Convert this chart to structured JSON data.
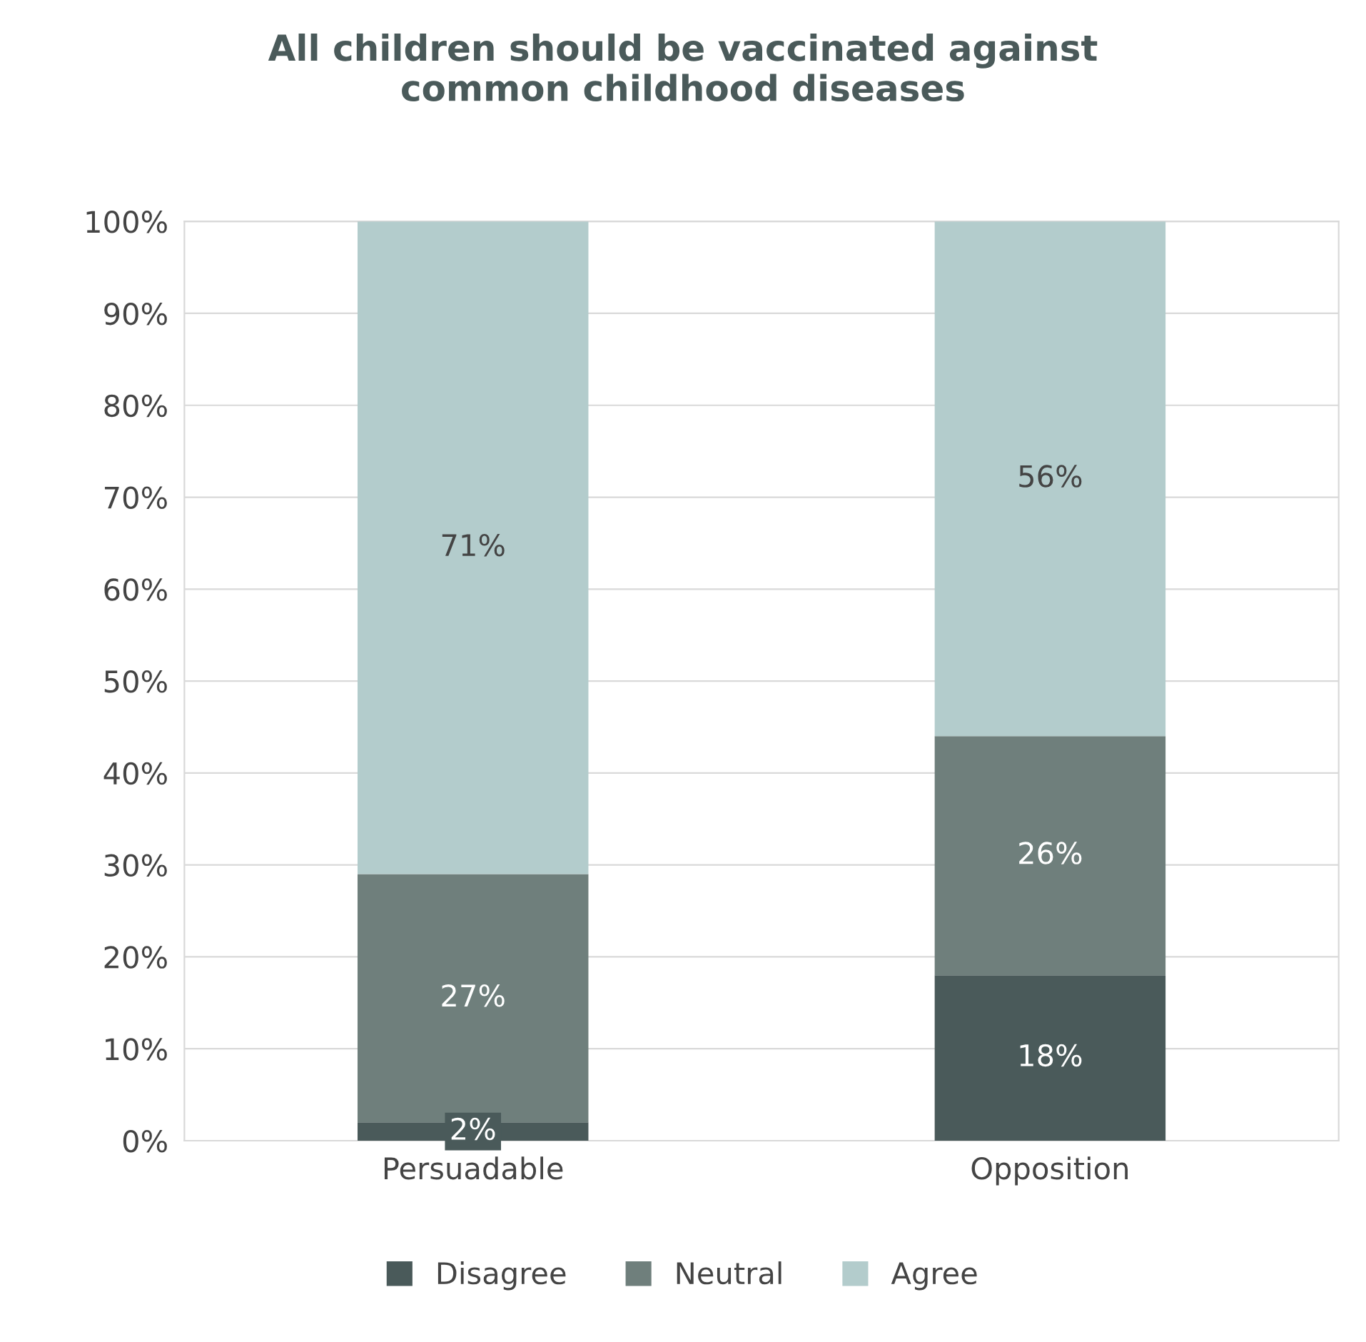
{
  "chart_data": {
    "type": "bar",
    "stacked": true,
    "title": "All children should be vaccinated against\ncommon childhood diseases",
    "categories": [
      "Persuadable",
      "Opposition"
    ],
    "series": [
      {
        "name": "Disagree",
        "color": "#4a5a5a",
        "values": [
          2,
          18
        ],
        "value_labels": [
          "2%",
          "18%"
        ]
      },
      {
        "name": "Neutral",
        "color": "#6f7f7c",
        "values": [
          27,
          26
        ],
        "value_labels": [
          "27%",
          "26%"
        ]
      },
      {
        "name": "Agree",
        "color": "#b3cccc",
        "values": [
          71,
          56
        ],
        "value_labels": [
          "71%",
          "56%"
        ]
      }
    ],
    "ylim": [
      0,
      100
    ],
    "yticks": [
      {
        "value": 0,
        "label": "0%"
      },
      {
        "value": 10,
        "label": "10%"
      },
      {
        "value": 20,
        "label": "20%"
      },
      {
        "value": 30,
        "label": "30%"
      },
      {
        "value": 40,
        "label": "40%"
      },
      {
        "value": 50,
        "label": "50%"
      },
      {
        "value": 60,
        "label": "60%"
      },
      {
        "value": 70,
        "label": "70%"
      },
      {
        "value": 80,
        "label": "80%"
      },
      {
        "value": 90,
        "label": "90%"
      },
      {
        "value": 100,
        "label": "100%"
      }
    ],
    "grid": "y",
    "legend": "bottom"
  }
}
